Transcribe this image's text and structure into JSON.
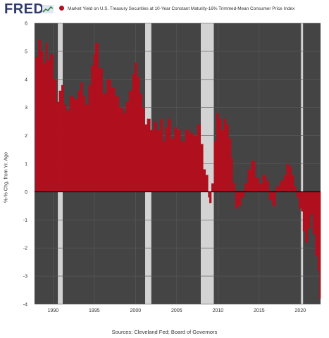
{
  "header": {
    "logo_text": "FRED",
    "legend_label": "Market Yield on U.S. Treasury Securities at 10-Year Constant Maturity-16% Trimmed-Mean Consumer Price Index"
  },
  "colors": {
    "series": "#b0101e",
    "plot_background": "#444444",
    "recession": "#d3d3d3",
    "grid": "#5b5b5b",
    "brand": "#2f3a6b"
  },
  "footer": {
    "source": "Sources: Cleveland Fed; Board of Governors"
  },
  "chart_data": {
    "type": "bar",
    "title": "",
    "xlabel": "",
    "ylabel": "%-% Chg. from Yr. Ago",
    "xlim": [
      1987.75,
      2022.45
    ],
    "ylim": [
      -4,
      6
    ],
    "y_ticks": [
      -4,
      -3,
      -2,
      -1,
      0,
      1,
      2,
      3,
      4,
      5,
      6
    ],
    "x_ticks": [
      1990,
      1995,
      2000,
      2005,
      2010,
      2015,
      2020
    ],
    "grid": true,
    "legend_position": "top",
    "recessions": [
      [
        1990.58,
        1991.17
      ],
      [
        2001.17,
        2001.92
      ],
      [
        2007.92,
        2009.5
      ],
      [
        2020.08,
        2020.33
      ]
    ],
    "series": [
      {
        "name": "Market Yield on U.S. Treasury Securities at 10-Year Constant Maturity-16% Trimmed-Mean Consumer Price Index",
        "x": [
          1987.85,
          1988.2,
          1988.5,
          1988.8,
          1989.1,
          1989.3,
          1989.6,
          1990.0,
          1990.4,
          1990.7,
          1991.0,
          1991.3,
          1991.6,
          1992.0,
          1992.5,
          1993.0,
          1993.3,
          1993.6,
          1993.9,
          1994.3,
          1994.6,
          1994.9,
          1995.1,
          1995.5,
          1996.0,
          1996.5,
          1997.0,
          1997.5,
          1998.0,
          1998.5,
          1998.8,
          1999.2,
          1999.6,
          1999.9,
          2000.2,
          2000.5,
          2000.8,
          2001.1,
          2001.4,
          2001.8,
          2002.2,
          2002.6,
          2003.0,
          2003.3,
          2003.6,
          2003.9,
          2004.3,
          2004.7,
          2005.0,
          2005.5,
          2006.0,
          2006.5,
          2007.0,
          2007.5,
          2007.9,
          2008.2,
          2008.5,
          2008.8,
          2008.95,
          2009.2,
          2009.5,
          2009.8,
          2010.1,
          2010.4,
          2010.7,
          2011.0,
          2011.3,
          2011.6,
          2011.8,
          2012.1,
          2012.4,
          2012.8,
          2013.2,
          2013.6,
          2014.0,
          2014.5,
          2015.0,
          2015.4,
          2015.8,
          2016.2,
          2016.6,
          2017.0,
          2017.5,
          2018.0,
          2018.3,
          2018.6,
          2018.9,
          2019.2,
          2019.5,
          2019.8,
          2020.1,
          2020.3,
          2020.6,
          2020.9,
          2021.2,
          2021.5,
          2021.8,
          2022.1,
          2022.3
        ],
        "values": [
          4.8,
          5.4,
          5.0,
          4.6,
          5.3,
          4.7,
          4.9,
          4.0,
          3.2,
          3.6,
          3.8,
          3.1,
          2.9,
          3.4,
          3.3,
          3.6,
          3.9,
          3.4,
          3.1,
          3.8,
          4.5,
          4.9,
          5.3,
          4.4,
          3.5,
          4.0,
          3.7,
          3.4,
          3.0,
          2.8,
          3.2,
          3.6,
          4.2,
          4.6,
          4.1,
          3.5,
          3.0,
          2.4,
          2.6,
          2.2,
          2.5,
          2.2,
          2.6,
          1.8,
          2.3,
          2.6,
          1.9,
          2.3,
          2.2,
          1.8,
          2.2,
          2.1,
          2.0,
          2.4,
          1.7,
          0.8,
          0.6,
          -0.2,
          -0.4,
          0.3,
          1.8,
          2.8,
          2.6,
          2.2,
          2.6,
          2.4,
          1.9,
          1.2,
          0.3,
          -0.6,
          -0.5,
          -0.2,
          0.3,
          0.8,
          1.1,
          0.5,
          0.3,
          0.6,
          0.4,
          -0.3,
          -0.5,
          0.2,
          0.4,
          0.6,
          1.0,
          0.9,
          0.6,
          0.2,
          -0.2,
          -0.6,
          -0.7,
          -1.4,
          -1.8,
          -1.3,
          -0.8,
          -1.5,
          -2.3,
          -2.8,
          -3.8
        ]
      }
    ]
  }
}
